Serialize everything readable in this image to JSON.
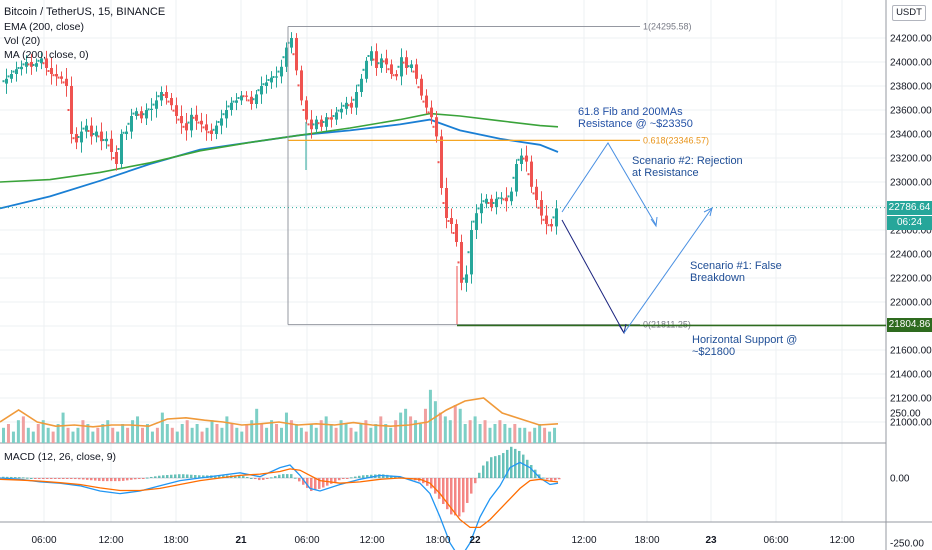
{
  "chart_data": {
    "type": "candlestick",
    "header": {
      "symbol": "Bitcoin / TetherUS, 15, BINANCE",
      "indicators": [
        "EMA (200, close)",
        "Vol (20)",
        "MA (200, close, 0)"
      ]
    },
    "currency_label": "USDT",
    "price_axis": {
      "range": [
        20750,
        24380
      ],
      "ticks": [
        "24200.00",
        "24000.00",
        "23800.00",
        "23600.00",
        "23400.00",
        "23200.00",
        "23000.00",
        "22800.00",
        "22600.00",
        "22400.00",
        "22200.00",
        "22000.00",
        "21800.00",
        "21600.00",
        "21400.00",
        "21200.00",
        "21000.00"
      ]
    },
    "macd_axis": {
      "ticks": [
        "250.00",
        "0.00",
        "-250.00"
      ],
      "range": [
        -360,
        290
      ]
    },
    "time_axis": {
      "ticks": [
        "06:00",
        "12:00",
        "18:00",
        "21",
        "06:00",
        "12:00",
        "18:00",
        "22",
        "12:00",
        "18:00",
        "23",
        "06:00",
        "12:00"
      ]
    },
    "price_badges": {
      "last_price": "22786.64",
      "countdown": "06:24",
      "support": "21804.86",
      "colors": {
        "last_price": "#26a69a",
        "countdown": "#26a69a",
        "support": "#2e6b1f"
      }
    },
    "fibonacci": {
      "level_1": {
        "label": "1(24295.58)",
        "price": 24295.58
      },
      "level_0618": {
        "label": "0.618(23346.57)",
        "price": 23346.57
      },
      "level_0": {
        "label": "0(21811.25)",
        "price": 21811.25
      }
    },
    "macd_label": "MACD (12, 26, close, 9)",
    "annotations": [
      {
        "id": "fib-resistance",
        "text": "61.8 Fib and 200MAs\nResistance @ ~$23350"
      },
      {
        "id": "scenario-2",
        "text": "Scenario #2: Rejection\nat Resistance"
      },
      {
        "id": "scenario-1",
        "text": "Scenario #1: False\nBreakdown"
      },
      {
        "id": "support",
        "text": "Horizontal Support @\n~$21800"
      }
    ],
    "price_path": [
      [
        0,
        23820
      ],
      [
        5,
        23860
      ],
      [
        10,
        23900
      ],
      [
        15,
        23940
      ],
      [
        20,
        23960
      ],
      [
        25,
        24000
      ],
      [
        30,
        23960
      ],
      [
        35,
        23990
      ],
      [
        40,
        24030
      ],
      [
        45,
        23950
      ],
      [
        50,
        23900
      ],
      [
        55,
        23880
      ],
      [
        60,
        23860
      ],
      [
        65,
        23800
      ],
      [
        70,
        23400
      ],
      [
        75,
        23330
      ],
      [
        80,
        23420
      ],
      [
        85,
        23470
      ],
      [
        90,
        23380
      ],
      [
        95,
        23420
      ],
      [
        100,
        23340
      ],
      [
        105,
        23360
      ],
      [
        110,
        23250
      ],
      [
        115,
        23150
      ],
      [
        120,
        23400
      ],
      [
        125,
        23420
      ],
      [
        130,
        23550
      ],
      [
        135,
        23590
      ],
      [
        140,
        23530
      ],
      [
        145,
        23600
      ],
      [
        150,
        23610
      ],
      [
        155,
        23680
      ],
      [
        160,
        23750
      ],
      [
        165,
        23700
      ],
      [
        170,
        23640
      ],
      [
        175,
        23550
      ],
      [
        180,
        23490
      ],
      [
        185,
        23430
      ],
      [
        190,
        23560
      ],
      [
        195,
        23510
      ],
      [
        200,
        23480
      ],
      [
        205,
        23430
      ],
      [
        210,
        23400
      ],
      [
        215,
        23470
      ],
      [
        220,
        23530
      ],
      [
        225,
        23600
      ],
      [
        230,
        23660
      ],
      [
        235,
        23680
      ],
      [
        240,
        23720
      ],
      [
        245,
        23710
      ],
      [
        250,
        23650
      ],
      [
        255,
        23730
      ],
      [
        260,
        23800
      ],
      [
        265,
        23830
      ],
      [
        270,
        23870
      ],
      [
        275,
        23880
      ],
      [
        280,
        23960
      ],
      [
        285,
        24120
      ],
      [
        290,
        24200
      ],
      [
        295,
        23930
      ],
      [
        300,
        23680
      ],
      [
        305,
        23520
      ],
      [
        310,
        23440
      ],
      [
        315,
        23520
      ],
      [
        320,
        23460
      ],
      [
        325,
        23540
      ],
      [
        330,
        23520
      ],
      [
        335,
        23580
      ],
      [
        340,
        23610
      ],
      [
        345,
        23660
      ],
      [
        350,
        23620
      ],
      [
        355,
        23750
      ],
      [
        360,
        23860
      ],
      [
        365,
        24010
      ],
      [
        370,
        24090
      ],
      [
        375,
        23950
      ],
      [
        380,
        24030
      ],
      [
        385,
        23980
      ],
      [
        390,
        23900
      ],
      [
        395,
        23880
      ],
      [
        400,
        24040
      ],
      [
        405,
        23950
      ],
      [
        410,
        23980
      ],
      [
        415,
        23860
      ],
      [
        420,
        23720
      ],
      [
        425,
        23620
      ],
      [
        430,
        23540
      ],
      [
        435,
        23380
      ],
      [
        440,
        22950
      ],
      [
        445,
        22700
      ],
      [
        450,
        22650
      ],
      [
        455,
        22500
      ],
      [
        460,
        22160
      ],
      [
        465,
        22230
      ],
      [
        470,
        22600
      ],
      [
        475,
        22740
      ],
      [
        480,
        22820
      ],
      [
        485,
        22860
      ],
      [
        490,
        22790
      ],
      [
        495,
        22860
      ],
      [
        500,
        22870
      ],
      [
        505,
        22840
      ],
      [
        510,
        22920
      ],
      [
        515,
        23150
      ],
      [
        520,
        23220
      ],
      [
        525,
        23170
      ],
      [
        530,
        22960
      ],
      [
        535,
        22850
      ],
      [
        540,
        22720
      ],
      [
        545,
        22650
      ],
      [
        550,
        22630
      ],
      [
        555,
        22780
      ]
    ],
    "ema200": [
      [
        0,
        23000
      ],
      [
        50,
        23020
      ],
      [
        100,
        23080
      ],
      [
        150,
        23160
      ],
      [
        200,
        23260
      ],
      [
        250,
        23330
      ],
      [
        300,
        23390
      ],
      [
        350,
        23450
      ],
      [
        400,
        23520
      ],
      [
        430,
        23570
      ],
      [
        460,
        23550
      ],
      [
        500,
        23510
      ],
      [
        540,
        23470
      ],
      [
        558,
        23460
      ]
    ],
    "ma200": [
      [
        0,
        22780
      ],
      [
        50,
        22880
      ],
      [
        100,
        23010
      ],
      [
        150,
        23150
      ],
      [
        200,
        23270
      ],
      [
        250,
        23330
      ],
      [
        300,
        23390
      ],
      [
        350,
        23430
      ],
      [
        400,
        23480
      ],
      [
        430,
        23520
      ],
      [
        460,
        23430
      ],
      [
        500,
        23360
      ],
      [
        540,
        23310
      ],
      [
        558,
        23250
      ]
    ],
    "volume": {
      "bars": [
        4,
        5,
        3,
        6,
        7,
        4,
        3,
        5,
        6,
        4,
        3,
        5,
        8,
        4,
        3,
        4,
        6,
        5,
        3,
        4,
        5,
        6,
        4,
        3,
        5,
        4,
        6,
        7,
        4,
        5,
        3,
        4,
        8,
        5,
        4,
        3,
        5,
        6,
        4,
        5,
        3,
        4,
        6,
        5,
        4,
        7,
        5,
        4,
        3,
        5,
        6,
        9,
        5,
        4,
        6,
        5,
        4,
        8,
        6,
        5,
        4,
        3,
        5,
        4,
        6,
        7,
        5,
        4,
        6,
        5,
        4,
        3,
        5,
        6,
        4,
        5,
        7,
        5,
        4,
        6,
        8,
        9,
        7,
        6,
        5,
        9,
        14,
        11,
        8,
        7,
        6,
        10,
        9,
        5,
        6,
        7,
        5,
        6,
        4,
        5,
        6,
        5,
        4,
        5,
        4,
        4,
        3,
        4,
        5,
        4,
        3,
        4
      ],
      "ma20_profile": [
        0.35,
        0.55,
        0.35,
        0.28,
        0.3,
        0.27,
        0.3,
        0.3,
        0.28,
        0.4,
        0.42,
        0.38,
        0.35,
        0.3,
        0.32,
        0.35,
        0.3,
        0.32,
        0.3,
        0.34,
        0.3,
        0.28,
        0.3,
        0.35,
        0.55,
        0.7,
        0.75,
        0.5,
        0.4,
        0.3,
        0.32
      ]
    },
    "macd": {
      "macd_line": [
        [
          0,
          0
        ],
        [
          20,
          -5
        ],
        [
          40,
          -15
        ],
        [
          60,
          -20
        ],
        [
          80,
          -30
        ],
        [
          100,
          -50
        ],
        [
          120,
          -60
        ],
        [
          140,
          -50
        ],
        [
          160,
          -30
        ],
        [
          180,
          -10
        ],
        [
          200,
          0
        ],
        [
          220,
          10
        ],
        [
          240,
          20
        ],
        [
          260,
          5
        ],
        [
          280,
          40
        ],
        [
          290,
          50
        ],
        [
          300,
          10
        ],
        [
          310,
          -40
        ],
        [
          320,
          -50
        ],
        [
          340,
          -25
        ],
        [
          360,
          -5
        ],
        [
          380,
          10
        ],
        [
          400,
          5
        ],
        [
          420,
          -20
        ],
        [
          430,
          -60
        ],
        [
          440,
          -150
        ],
        [
          450,
          -250
        ],
        [
          460,
          -310
        ],
        [
          470,
          -250
        ],
        [
          480,
          -150
        ],
        [
          490,
          -80
        ],
        [
          500,
          -30
        ],
        [
          510,
          40
        ],
        [
          520,
          60
        ],
        [
          530,
          40
        ],
        [
          540,
          0
        ],
        [
          550,
          -25
        ],
        [
          558,
          -20
        ]
      ],
      "signal_line": [
        [
          0,
          -5
        ],
        [
          20,
          -8
        ],
        [
          40,
          -12
        ],
        [
          60,
          -18
        ],
        [
          80,
          -25
        ],
        [
          100,
          -38
        ],
        [
          120,
          -48
        ],
        [
          140,
          -48
        ],
        [
          160,
          -40
        ],
        [
          180,
          -25
        ],
        [
          200,
          -10
        ],
        [
          220,
          0
        ],
        [
          240,
          10
        ],
        [
          260,
          15
        ],
        [
          280,
          25
        ],
        [
          290,
          35
        ],
        [
          300,
          30
        ],
        [
          310,
          10
        ],
        [
          320,
          -10
        ],
        [
          340,
          -20
        ],
        [
          360,
          -15
        ],
        [
          380,
          -5
        ],
        [
          400,
          0
        ],
        [
          420,
          -5
        ],
        [
          430,
          -20
        ],
        [
          440,
          -60
        ],
        [
          450,
          -110
        ],
        [
          460,
          -160
        ],
        [
          470,
          -190
        ],
        [
          480,
          -190
        ],
        [
          490,
          -160
        ],
        [
          500,
          -120
        ],
        [
          510,
          -80
        ],
        [
          520,
          -40
        ],
        [
          530,
          -10
        ],
        [
          540,
          -5
        ],
        [
          550,
          -12
        ],
        [
          558,
          -15
        ]
      ]
    }
  }
}
